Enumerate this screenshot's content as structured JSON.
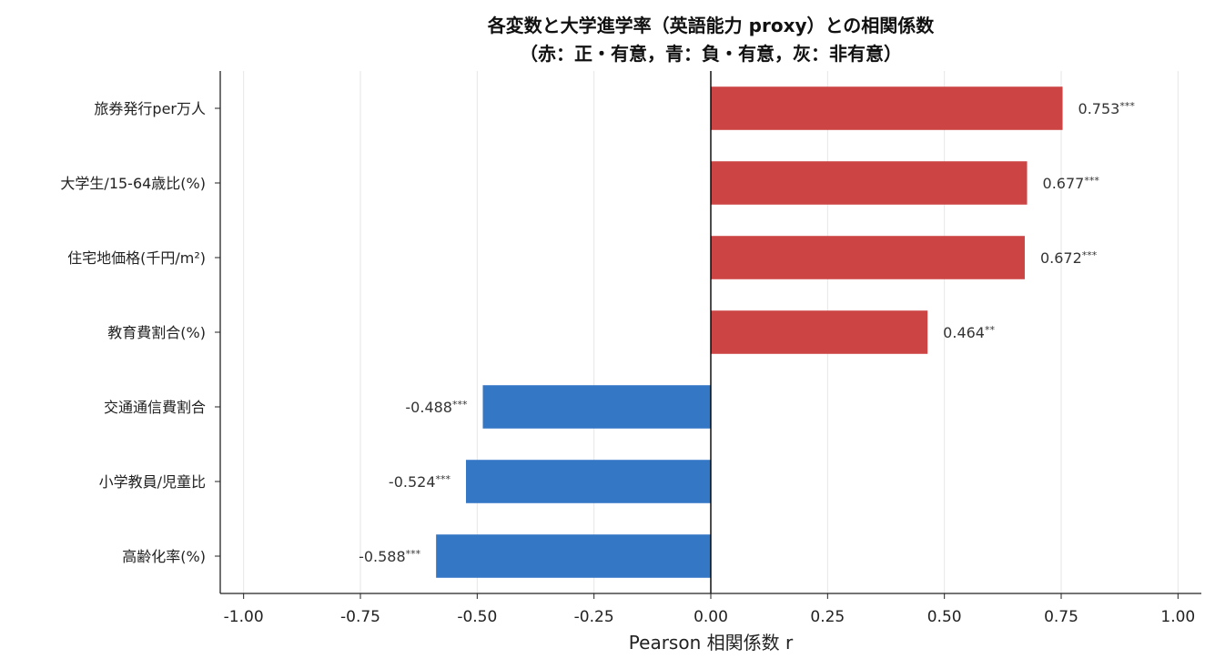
{
  "chart_data": {
    "type": "bar",
    "orientation": "horizontal",
    "title_line1": "各変数と大学進学率（英語能力 proxy）との相関係数",
    "title_line2": "（赤：正・有意，青：負・有意，灰：非有意）",
    "xlabel": "Pearson 相関係数 r",
    "xlim": [
      -1.05,
      1.05
    ],
    "xticks": [
      -1.0,
      -0.75,
      -0.5,
      -0.25,
      0.0,
      0.25,
      0.5,
      0.75,
      1.0
    ],
    "xtick_labels": [
      "-1.00",
      "-0.75",
      "-0.50",
      "-0.25",
      "0.00",
      "0.25",
      "0.50",
      "0.75",
      "1.00"
    ],
    "grid": "vertical",
    "categories": [
      "旅券発行per万人",
      "大学生/15-64歳比(%)",
      "住宅地価格(千円/m²)",
      "教育費割合(%)",
      "交通通信費割合",
      "小学教員/児童比",
      "高齢化率(%)"
    ],
    "values": [
      0.753,
      0.677,
      0.672,
      0.464,
      -0.488,
      -0.524,
      -0.588
    ],
    "value_labels": [
      "0.753",
      "0.677",
      "0.672",
      "0.464",
      "-0.488",
      "-0.524",
      "-0.588"
    ],
    "significance": [
      "***",
      "***",
      "***",
      "**",
      "***",
      "***",
      "***"
    ],
    "colors": {
      "positive": "#cc4444",
      "negative": "#3377c5",
      "zero_line": "#000000",
      "grid": "#e6e6e6"
    }
  }
}
